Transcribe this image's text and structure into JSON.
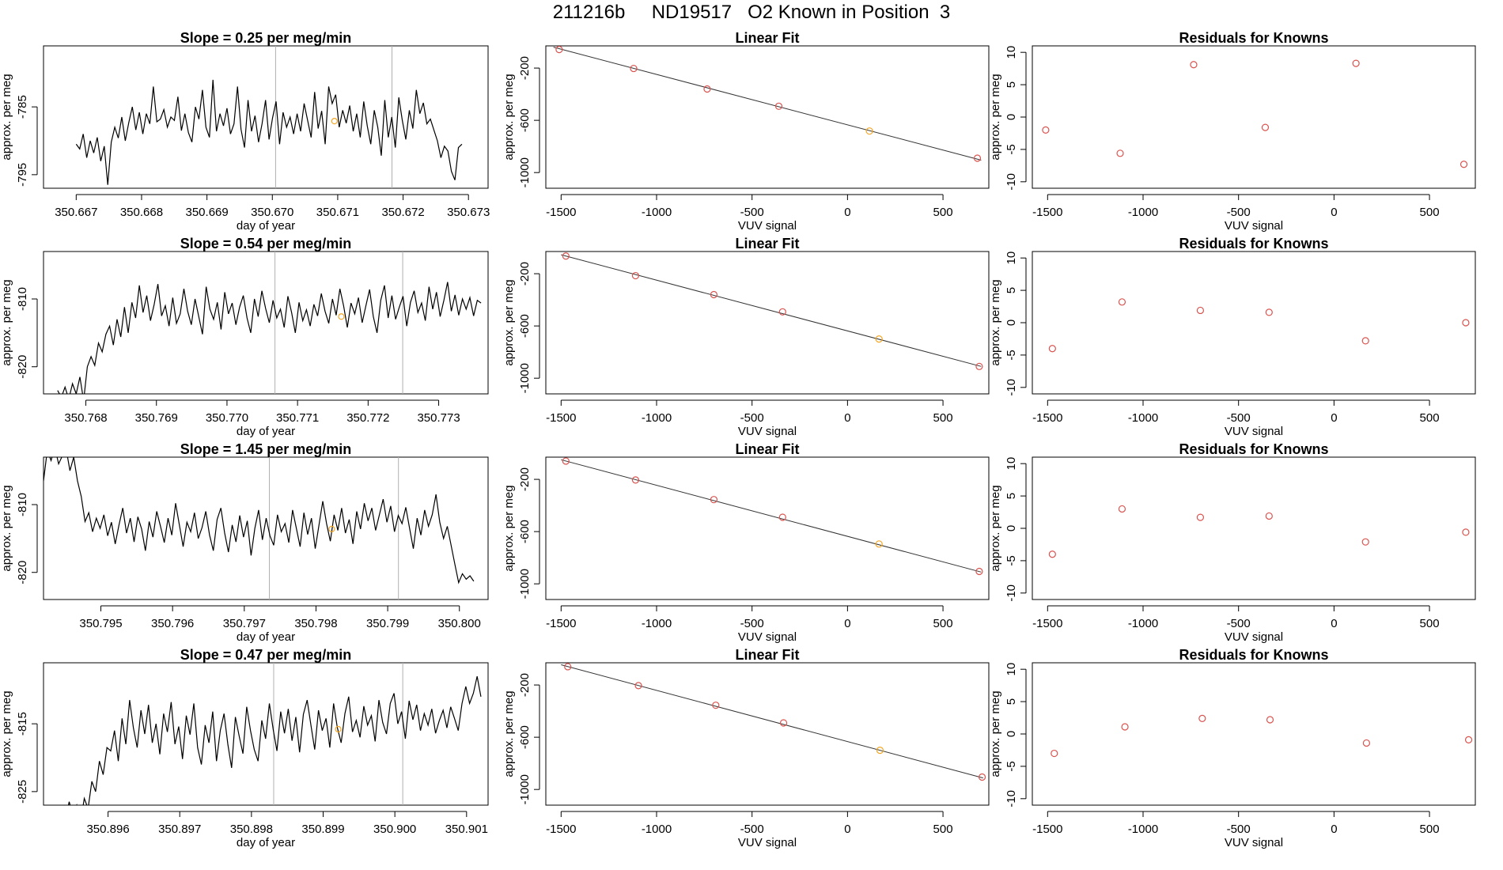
{
  "page": {
    "title": "211216b     ND19517   O2 Known in Position  3"
  },
  "colors": {
    "trace": "#000000",
    "marker": "#f5a623",
    "residual": "#d9534f",
    "vline": "#b0b0b0",
    "fitline": "#333333"
  },
  "chart_data": [
    {
      "type": "line",
      "row": 1,
      "title": "Slope =  0.25  per meg/min",
      "xlabel": "day of year",
      "ylabel": "approx. per meg",
      "xlim": [
        350.6665,
        350.6733
      ],
      "ylim": [
        -797,
        -776
      ],
      "xticks": [
        350.667,
        350.668,
        350.669,
        350.67,
        350.671,
        350.672,
        350.673
      ],
      "xtick_labels": [
        "350.667",
        "350.668",
        "350.669",
        "350.670",
        "350.671",
        "350.672",
        "350.673"
      ],
      "yticks": [
        -795,
        -785
      ],
      "ytick_labels": [
        "-795",
        "-785"
      ],
      "vlines": [
        350.67005,
        350.67183
      ],
      "marker": {
        "x": 350.67095,
        "y": -787.1
      },
      "start": 350.667,
      "end": 350.6729,
      "trace": [
        -790.5,
        -791.2,
        -789.0,
        -792.5,
        -790.0,
        -791.8,
        -789.5,
        -793.0,
        -790.8,
        -796.5,
        -790.2,
        -788.0,
        -789.6,
        -786.5,
        -790.0,
        -787.3,
        -785.0,
        -788.4,
        -785.8,
        -789.0,
        -786.0,
        -787.5,
        -782.0,
        -787.2,
        -786.8,
        -785.4,
        -788.0,
        -786.5,
        -787.0,
        -783.5,
        -788.5,
        -786.0,
        -788.8,
        -790.2,
        -785.0,
        -786.8,
        -782.5,
        -788.0,
        -789.5,
        -781.0,
        -788.6,
        -786.0,
        -787.8,
        -785.2,
        -789.0,
        -787.5,
        -782.0,
        -788.3,
        -791.0,
        -784.0,
        -788.6,
        -786.3,
        -790.2,
        -787.5,
        -784.0,
        -789.8,
        -786.6,
        -784.2,
        -790.5,
        -785.8,
        -788.0,
        -786.5,
        -789.0,
        -786.0,
        -788.6,
        -784.5,
        -787.0,
        -789.5,
        -782.8,
        -788.2,
        -785.6,
        -790.5,
        -782.0,
        -784.5,
        -783.2,
        -788.0,
        -785.5,
        -787.4,
        -784.8,
        -788.6,
        -786.0,
        -789.5,
        -784.2,
        -787.8,
        -790.5,
        -785.5,
        -788.0,
        -792.2,
        -784.0,
        -789.5,
        -786.5,
        -791.0,
        -783.6,
        -787.0,
        -789.8,
        -785.5,
        -788.2,
        -782.5,
        -786.0,
        -784.4,
        -787.5,
        -786.8,
        -788.4,
        -790.0,
        -792.5,
        -790.8,
        -791.5,
        -794.5,
        -795.8,
        -791.0,
        -790.5
      ]
    },
    {
      "type": "scatter",
      "row": 1,
      "title": "Linear Fit",
      "xlabel": "VUV signal",
      "ylabel": "approx. per meg",
      "xlim": [
        -1580,
        740
      ],
      "ylim": [
        -1120,
        -30
      ],
      "xticks": [
        -1500,
        -1000,
        -500,
        0,
        500
      ],
      "xtick_labels": [
        "-1500",
        "-1000",
        "-500",
        "0",
        "500"
      ],
      "yticks": [
        -200,
        -600,
        -1000
      ],
      "ytick_labels": [
        "-200",
        "-600",
        "-1000"
      ],
      "x": [
        -1510,
        -1120,
        -735,
        -360,
        115,
        680
      ],
      "y": [
        -58,
        -203,
        -360,
        -492,
        -682,
        -890
      ],
      "point_colors": [
        "residual",
        "residual",
        "residual",
        "residual",
        "marker",
        "residual"
      ],
      "fit": [
        [
          -1540,
          -40
        ],
        [
          700,
          -905
        ]
      ]
    },
    {
      "type": "scatter",
      "row": 1,
      "title": "Residuals for Knowns",
      "xlabel": "VUV signal",
      "ylabel": "approx. per meg",
      "xlim": [
        -1580,
        740
      ],
      "ylim": [
        -11,
        11
      ],
      "xticks": [
        -1500,
        -1000,
        -500,
        0,
        500
      ],
      "xtick_labels": [
        "-1500",
        "-1000",
        "-500",
        "0",
        "500"
      ],
      "yticks": [
        -10,
        -5,
        0,
        5,
        10
      ],
      "ytick_labels": [
        "-10",
        "-5",
        "0",
        "5",
        "10"
      ],
      "x": [
        -1510,
        -1120,
        -735,
        -360,
        115,
        680
      ],
      "y": [
        -2.0,
        -5.6,
        8.1,
        -1.6,
        8.3,
        -7.3
      ]
    },
    {
      "type": "line",
      "row": 2,
      "title": "Slope =  0.54  per meg/min",
      "xlabel": "day of year",
      "ylabel": "approx. per meg",
      "xlim": [
        350.7674,
        350.7737
      ],
      "ylim": [
        -824,
        -803
      ],
      "xticks": [
        350.768,
        350.769,
        350.77,
        350.771,
        350.772,
        350.773
      ],
      "xtick_labels": [
        "350.768",
        "350.769",
        "350.770",
        "350.771",
        "350.772",
        "350.773"
      ],
      "yticks": [
        -820,
        -810
      ],
      "ytick_labels": [
        "-820",
        "-810"
      ],
      "vlines": [
        350.77068,
        350.77249
      ],
      "marker": {
        "x": 350.77162,
        "y": -812.6
      },
      "start": 350.7676,
      "end": 350.7736,
      "trace": [
        -823.5,
        -824.5,
        -823.0,
        -824.8,
        -822.5,
        -824.0,
        -821.5,
        -825.0,
        -820.0,
        -818.5,
        -819.8,
        -816.5,
        -817.8,
        -815.2,
        -814.0,
        -816.8,
        -813.0,
        -815.6,
        -811.2,
        -815.0,
        -810.5,
        -812.8,
        -808.0,
        -812.0,
        -809.5,
        -813.2,
        -810.8,
        -807.8,
        -812.5,
        -811.0,
        -814.0,
        -809.8,
        -813.6,
        -812.2,
        -808.5,
        -811.8,
        -813.8,
        -810.0,
        -812.6,
        -815.2,
        -808.2,
        -811.5,
        -813.0,
        -810.5,
        -814.5,
        -809.0,
        -812.2,
        -810.6,
        -813.8,
        -811.2,
        -809.5,
        -812.8,
        -815.0,
        -810.0,
        -812.6,
        -808.8,
        -811.4,
        -813.5,
        -810.2,
        -812.8,
        -811.5,
        -814.2,
        -809.6,
        -812.0,
        -815.0,
        -810.5,
        -813.2,
        -811.6,
        -814.0,
        -810.8,
        -812.5,
        -809.2,
        -811.8,
        -813.6,
        -810.0,
        -812.4,
        -808.5,
        -811.0,
        -814.2,
        -810.6,
        -812.2,
        -809.8,
        -813.5,
        -811.0,
        -808.6,
        -812.6,
        -815.0,
        -810.2,
        -808.0,
        -812.8,
        -809.5,
        -813.0,
        -811.2,
        -809.6,
        -814.0,
        -810.5,
        -808.8,
        -812.0,
        -810.6,
        -813.2,
        -808.2,
        -811.5,
        -809.0,
        -812.6,
        -810.2,
        -807.5,
        -811.8,
        -809.4,
        -812.4,
        -810.0,
        -811.5,
        -809.8,
        -812.5,
        -810.2,
        -810.6
      ]
    },
    {
      "type": "scatter",
      "row": 2,
      "title": "Linear Fit",
      "xlabel": "VUV signal",
      "ylabel": "approx. per meg",
      "xlim": [
        -1580,
        740
      ],
      "ylim": [
        -1120,
        -30
      ],
      "xticks": [
        -1500,
        -1000,
        -500,
        0,
        500
      ],
      "xtick_labels": [
        "-1500",
        "-1000",
        "-500",
        "0",
        "500"
      ],
      "yticks": [
        -200,
        -600,
        -1000
      ],
      "ytick_labels": [
        "-200",
        "-600",
        "-1000"
      ],
      "x": [
        -1475,
        -1110,
        -700,
        -340,
        165,
        690
      ],
      "y": [
        -65,
        -215,
        -360,
        -492,
        -700,
        -910
      ],
      "point_colors": [
        "residual",
        "residual",
        "residual",
        "residual",
        "marker",
        "residual"
      ],
      "fit": [
        [
          -1500,
          -55
        ],
        [
          700,
          -910
        ]
      ]
    },
    {
      "type": "scatter",
      "row": 2,
      "title": "Residuals for Knowns",
      "xlabel": "VUV signal",
      "ylabel": "approx. per meg",
      "xlim": [
        -1580,
        740
      ],
      "ylim": [
        -11,
        11
      ],
      "xticks": [
        -1500,
        -1000,
        -500,
        0,
        500
      ],
      "xtick_labels": [
        "-1500",
        "-1000",
        "-500",
        "0",
        "500"
      ],
      "yticks": [
        -10,
        -5,
        0,
        5,
        10
      ],
      "ytick_labels": [
        "-10",
        "-5",
        "0",
        "5",
        "10"
      ],
      "x": [
        -1475,
        -1110,
        -700,
        -340,
        165,
        690
      ],
      "y": [
        -4.0,
        3.2,
        1.9,
        1.6,
        -2.8,
        0.0
      ]
    },
    {
      "type": "line",
      "row": 3,
      "title": "Slope =  1.45  per meg/min",
      "xlabel": "day of year",
      "ylabel": "approx. per meg",
      "xlim": [
        350.7942,
        350.8004
      ],
      "ylim": [
        -824,
        -803
      ],
      "xticks": [
        350.795,
        350.796,
        350.797,
        350.798,
        350.799,
        350.8
      ],
      "xtick_labels": [
        "350.795",
        "350.796",
        "350.797",
        "350.798",
        "350.799",
        "350.800"
      ],
      "yticks": [
        -820,
        -810
      ],
      "ytick_labels": [
        "-820",
        "-810"
      ],
      "vlines": [
        350.79735,
        350.79915
      ],
      "marker": {
        "x": 350.79822,
        "y": -813.6
      },
      "start": 350.7942,
      "end": 350.8002,
      "trace": [
        -806.5,
        -802.0,
        -803.5,
        -801.5,
        -804.0,
        -802.8,
        -801.8,
        -805.0,
        -803.0,
        -806.5,
        -808.8,
        -812.5,
        -811.2,
        -814.0,
        -812.0,
        -813.5,
        -811.5,
        -814.6,
        -812.6,
        -815.8,
        -813.0,
        -810.5,
        -814.2,
        -812.0,
        -815.5,
        -811.8,
        -813.6,
        -816.8,
        -812.5,
        -814.8,
        -811.0,
        -813.2,
        -815.6,
        -812.0,
        -814.5,
        -809.8,
        -813.0,
        -816.2,
        -812.6,
        -814.0,
        -811.2,
        -815.0,
        -813.4,
        -811.0,
        -814.5,
        -816.8,
        -812.2,
        -810.5,
        -814.2,
        -817.0,
        -813.0,
        -815.5,
        -811.6,
        -814.8,
        -812.4,
        -817.5,
        -813.5,
        -810.8,
        -815.2,
        -812.0,
        -814.6,
        -816.0,
        -811.5,
        -814.0,
        -812.8,
        -815.6,
        -810.8,
        -813.5,
        -816.2,
        -811.2,
        -814.4,
        -812.0,
        -816.5,
        -813.0,
        -809.5,
        -812.8,
        -815.4,
        -811.5,
        -813.8,
        -810.5,
        -814.2,
        -812.2,
        -815.8,
        -811.0,
        -813.6,
        -809.8,
        -812.4,
        -810.5,
        -813.8,
        -811.5,
        -809.2,
        -812.6,
        -810.2,
        -814.0,
        -811.6,
        -812.8,
        -810.4,
        -813.5,
        -816.5,
        -812.0,
        -814.5,
        -810.8,
        -813.2,
        -811.5,
        -808.5,
        -812.6,
        -815.0,
        -813.2,
        -816.0,
        -818.8,
        -821.5,
        -820.2,
        -821.0,
        -820.5,
        -821.3
      ]
    },
    {
      "type": "scatter",
      "row": 3,
      "title": "Linear Fit",
      "xlabel": "VUV signal",
      "ylabel": "approx. per meg",
      "xlim": [
        -1580,
        740
      ],
      "ylim": [
        -1120,
        -30
      ],
      "xticks": [
        -1500,
        -1000,
        -500,
        0,
        500
      ],
      "xtick_labels": [
        "-1500",
        "-1000",
        "-500",
        "0",
        "500"
      ],
      "yticks": [
        -200,
        -600,
        -1000
      ],
      "ytick_labels": [
        "-200",
        "-600",
        "-1000"
      ],
      "x": [
        -1475,
        -1110,
        -700,
        -340,
        165,
        690
      ],
      "y": [
        -60,
        -205,
        -355,
        -490,
        -695,
        -905
      ],
      "point_colors": [
        "residual",
        "residual",
        "residual",
        "residual",
        "marker",
        "residual"
      ],
      "fit": [
        [
          -1500,
          -50
        ],
        [
          700,
          -910
        ]
      ]
    },
    {
      "type": "scatter",
      "row": 3,
      "title": "Residuals for Knowns",
      "xlabel": "VUV signal",
      "ylabel": "approx. per meg",
      "xlim": [
        -1580,
        740
      ],
      "ylim": [
        -11,
        11
      ],
      "xticks": [
        -1500,
        -1000,
        -500,
        0,
        500
      ],
      "xtick_labels": [
        "-1500",
        "-1000",
        "-500",
        "0",
        "500"
      ],
      "yticks": [
        -10,
        -5,
        0,
        5,
        10
      ],
      "ytick_labels": [
        "-10",
        "-5",
        "0",
        "5",
        "10"
      ],
      "x": [
        -1475,
        -1110,
        -700,
        -340,
        165,
        690
      ],
      "y": [
        -4.0,
        3.0,
        1.7,
        1.9,
        -2.1,
        -0.6
      ]
    },
    {
      "type": "line",
      "row": 4,
      "title": "Slope =  0.47  per meg/min",
      "xlabel": "day of year",
      "ylabel": "approx. per meg",
      "xlim": [
        350.8951,
        350.9013
      ],
      "ylim": [
        -827,
        -806
      ],
      "xticks": [
        350.896,
        350.897,
        350.898,
        350.899,
        350.9,
        350.901
      ],
      "xtick_labels": [
        "350.896",
        "350.897",
        "350.898",
        "350.899",
        "350.900",
        "350.901"
      ],
      "yticks": [
        -825,
        -815
      ],
      "ytick_labels": [
        "-825",
        "-815"
      ],
      "vlines": [
        350.89831,
        350.90011
      ],
      "marker": {
        "x": 350.89921,
        "y": -815.8
      },
      "start": 350.8953,
      "end": 350.9012,
      "trace": [
        -828.0,
        -827.5,
        -829.0,
        -826.5,
        -828.5,
        -827.0,
        -829.5,
        -826.0,
        -827.5,
        -823.5,
        -825.0,
        -820.5,
        -822.5,
        -818.5,
        -819.0,
        -816.0,
        -820.5,
        -814.2,
        -818.0,
        -811.5,
        -815.6,
        -818.5,
        -813.0,
        -816.5,
        -812.2,
        -817.8,
        -815.0,
        -819.5,
        -813.5,
        -816.2,
        -811.8,
        -818.0,
        -815.4,
        -820.2,
        -813.8,
        -816.6,
        -812.0,
        -818.5,
        -821.0,
        -815.2,
        -817.8,
        -813.2,
        -820.5,
        -816.0,
        -813.5,
        -818.0,
        -821.5,
        -814.0,
        -816.8,
        -819.4,
        -812.5,
        -816.0,
        -818.8,
        -820.5,
        -814.5,
        -817.2,
        -812.0,
        -815.8,
        -819.0,
        -813.2,
        -816.4,
        -812.8,
        -817.5,
        -814.0,
        -819.2,
        -813.6,
        -811.5,
        -815.2,
        -818.8,
        -813.0,
        -816.0,
        -814.2,
        -818.5,
        -812.0,
        -815.6,
        -817.8,
        -813.5,
        -811.0,
        -816.2,
        -814.5,
        -817.0,
        -812.4,
        -815.2,
        -813.8,
        -817.6,
        -811.5,
        -814.8,
        -816.5,
        -812.0,
        -810.5,
        -815.0,
        -813.2,
        -817.2,
        -811.6,
        -814.4,
        -812.2,
        -816.0,
        -813.5,
        -815.2,
        -812.8,
        -816.4,
        -814.5,
        -813.0,
        -815.6,
        -812.5,
        -814.2,
        -816.0,
        -812.0,
        -809.5,
        -812.0,
        -810.5,
        -808.0,
        -811.0
      ]
    },
    {
      "type": "scatter",
      "row": 4,
      "title": "Linear Fit",
      "xlabel": "VUV signal",
      "ylabel": "approx. per meg",
      "xlim": [
        -1580,
        740
      ],
      "ylim": [
        -1120,
        -30
      ],
      "xticks": [
        -1500,
        -1000,
        -500,
        0,
        500
      ],
      "xtick_labels": [
        "-1500",
        "-1000",
        "-500",
        "0",
        "500"
      ],
      "yticks": [
        -200,
        -600,
        -1000
      ],
      "ytick_labels": [
        "-200",
        "-600",
        "-1000"
      ],
      "x": [
        -1465,
        -1095,
        -690,
        -335,
        170,
        705
      ],
      "y": [
        -60,
        -205,
        -355,
        -490,
        -700,
        -905
      ],
      "point_colors": [
        "residual",
        "residual",
        "residual",
        "residual",
        "marker",
        "residual"
      ],
      "fit": [
        [
          -1500,
          -45
        ],
        [
          710,
          -912
        ]
      ]
    },
    {
      "type": "scatter",
      "row": 4,
      "title": "Residuals for Knowns",
      "xlabel": "VUV signal",
      "ylabel": "approx. per meg",
      "xlim": [
        -1580,
        740
      ],
      "ylim": [
        -11,
        11
      ],
      "xticks": [
        -1500,
        -1000,
        -500,
        0,
        500
      ],
      "xtick_labels": [
        "-1500",
        "-1000",
        "-500",
        "0",
        "500"
      ],
      "yticks": [
        -10,
        -5,
        0,
        5,
        10
      ],
      "ytick_labels": [
        "-10",
        "-5",
        "0",
        "5",
        "10"
      ],
      "x": [
        -1465,
        -1095,
        -690,
        -335,
        170,
        705
      ],
      "y": [
        -3.0,
        1.1,
        2.4,
        2.2,
        -1.4,
        -0.9
      ]
    }
  ]
}
